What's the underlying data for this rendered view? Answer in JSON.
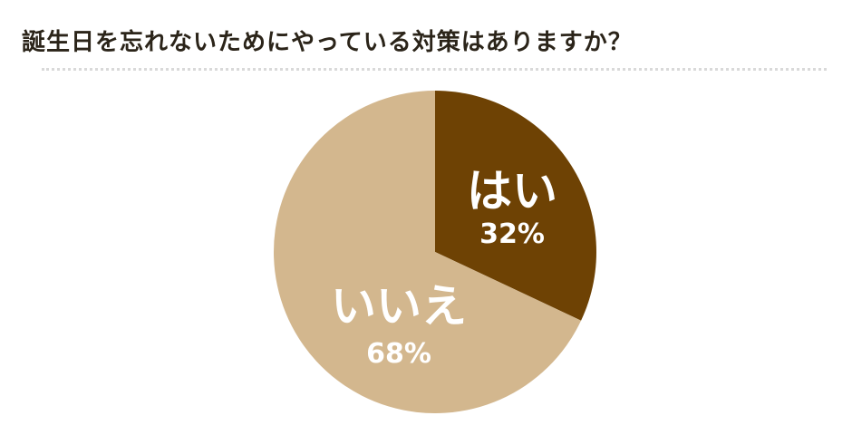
{
  "chart_data": {
    "type": "pie",
    "title": "誕生日を忘れないためにやっている対策はありますか？",
    "slices": [
      {
        "label": "はい",
        "value": 32,
        "value_label": "32%",
        "color": "#6e4204"
      },
      {
        "label": "いいえ",
        "value": 68,
        "value_label": "68%",
        "color": "#d3b78e"
      }
    ],
    "start_angle": "12 o'clock",
    "direction": "clockwise",
    "legend": "none"
  }
}
